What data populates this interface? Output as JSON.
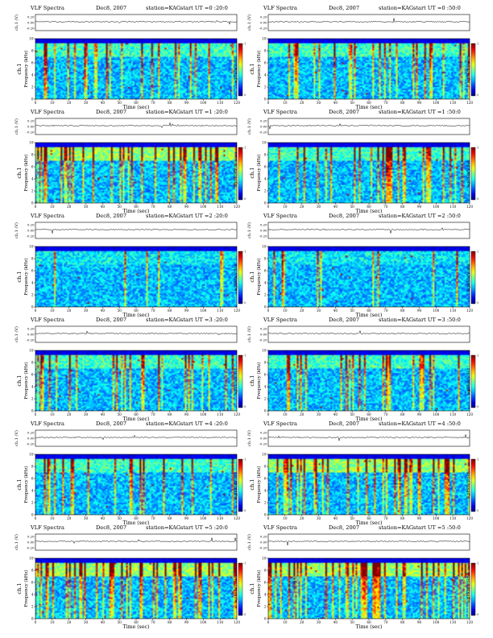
{
  "chart_data": [
    {
      "type": "heatmap",
      "title_prefix": "VLF Spectra",
      "date": "Dec8, 2007",
      "station": "station=KAG",
      "start_ut": "start UT =0 :20:0",
      "panel_label": "ch.1",
      "top_ylabel": "ch.1 (V)",
      "top_yticks": [
        "0.20",
        "0.00",
        "-0.20"
      ],
      "ylabel": "Frequency (kHz)",
      "xlabel": "Time (sec)",
      "xlim": [
        0,
        120
      ],
      "xticks": [
        0,
        10,
        20,
        30,
        40,
        50,
        60,
        70,
        80,
        90,
        100,
        110,
        120
      ],
      "ylim": [
        0,
        10
      ],
      "yticks": [
        0,
        2,
        4,
        6,
        8,
        10
      ],
      "colorbar_label": "log(PSD)(V²/Hz)",
      "colorbar_ticks": [
        "-1",
        "-5"
      ],
      "activity": "moderate",
      "band_top_khz": 9.2,
      "side": "left"
    },
    {
      "type": "heatmap",
      "title_prefix": "VLF Spectra",
      "date": "Dec8, 2007",
      "station": "station=KAG",
      "start_ut": "start UT =0 :50:0",
      "panel_label": "ch.1",
      "top_ylabel": "ch.1 (V)",
      "top_yticks": [
        "0.20",
        "0.00",
        "-0.20"
      ],
      "ylabel": "Frequency (kHz)",
      "xlabel": "Time (sec)",
      "xlim": [
        0,
        120
      ],
      "xticks": [
        0,
        10,
        20,
        30,
        40,
        50,
        60,
        70,
        80,
        90,
        100,
        110,
        120
      ],
      "ylim": [
        0,
        10
      ],
      "yticks": [
        0,
        2,
        4,
        6,
        8,
        10
      ],
      "colorbar_label": "log(PSD)(V²/Hz)",
      "colorbar_ticks": [
        "-1",
        "-5"
      ],
      "activity": "moderate",
      "band_top_khz": 9.2,
      "side": "right"
    },
    {
      "type": "heatmap",
      "title_prefix": "VLF Spectra",
      "date": "Dec8, 2007",
      "station": "station=KAG",
      "start_ut": "start UT =1 :20:0",
      "panel_label": "ch.1",
      "top_ylabel": "ch.1 (V)",
      "top_yticks": [
        "0.20",
        "0.00",
        "-0.20"
      ],
      "ylabel": "Frequency (kHz)",
      "xlabel": "Time (sec)",
      "xlim": [
        0,
        120
      ],
      "xticks": [
        0,
        10,
        20,
        30,
        40,
        50,
        60,
        70,
        80,
        90,
        100,
        110,
        120
      ],
      "ylim": [
        0,
        10
      ],
      "yticks": [
        0,
        2,
        4,
        6,
        8,
        10
      ],
      "colorbar_label": "log(PSD)(V²/Hz)",
      "colorbar_ticks": [
        "-1",
        "-5"
      ],
      "activity": "high",
      "band_top_khz": 9.2,
      "side": "left"
    },
    {
      "type": "heatmap",
      "title_prefix": "VLF Spectra",
      "date": "Dec8, 2007",
      "station": "station=KAG",
      "start_ut": "start UT =1 :50:0",
      "panel_label": "ch.1",
      "top_ylabel": "ch.1 (V)",
      "top_yticks": [
        "0.20",
        "0.00",
        "-0.20"
      ],
      "ylabel": "Frequency (kHz)",
      "xlabel": "Time (sec)",
      "xlim": [
        0,
        120
      ],
      "xticks": [
        0,
        10,
        20,
        30,
        40,
        50,
        60,
        70,
        80,
        90,
        100,
        110,
        120
      ],
      "ylim": [
        0,
        10
      ],
      "yticks": [
        0,
        2,
        4,
        6,
        8,
        10
      ],
      "colorbar_label": "log(PSD)(V²/Hz)",
      "colorbar_ticks": [
        "-1",
        "-5"
      ],
      "activity": "moderate",
      "band_top_khz": 9.2,
      "side": "right"
    },
    {
      "type": "heatmap",
      "title_prefix": "VLF Spectra",
      "date": "Dec8, 2007",
      "station": "station=KAG",
      "start_ut": "start UT =2 :20:0",
      "panel_label": "ch.1",
      "top_ylabel": "ch.1 (V)",
      "top_yticks": [
        "0.20",
        "0.00",
        "-0.20"
      ],
      "ylabel": "Frequency (kHz)",
      "xlabel": "Time (sec)",
      "xlim": [
        0,
        120
      ],
      "xticks": [
        0,
        10,
        20,
        30,
        40,
        50,
        60,
        70,
        80,
        90,
        100,
        110,
        120
      ],
      "ylim": [
        0,
        10
      ],
      "yticks": [
        0,
        2,
        4,
        6,
        8,
        10
      ],
      "colorbar_label": "log(PSD)(V²/Hz)",
      "colorbar_ticks": [
        "-1",
        "-5"
      ],
      "activity": "low",
      "band_top_khz": 9.2,
      "side": "left"
    },
    {
      "type": "heatmap",
      "title_prefix": "VLF Spectra",
      "date": "Dec8, 2007",
      "station": "station=KAG",
      "start_ut": "start UT =2 :50:0",
      "panel_label": "ch.1",
      "top_ylabel": "ch.1 (V)",
      "top_yticks": [
        "0.20",
        "0.00",
        "-0.20"
      ],
      "ylabel": "Frequency (kHz)",
      "xlabel": "Time (sec)",
      "xlim": [
        0,
        120
      ],
      "xticks": [
        0,
        10,
        20,
        30,
        40,
        50,
        60,
        70,
        80,
        90,
        100,
        110,
        120
      ],
      "ylim": [
        0,
        10
      ],
      "yticks": [
        0,
        2,
        4,
        6,
        8,
        10
      ],
      "colorbar_label": "log(PSD)(V²/Hz)",
      "colorbar_ticks": [
        "-1",
        "-5"
      ],
      "activity": "low",
      "band_top_khz": 9.2,
      "side": "right"
    },
    {
      "type": "heatmap",
      "title_prefix": "VLF Spectra",
      "date": "Dec8, 2007",
      "station": "station=KAG",
      "start_ut": "start UT =3 :20:0",
      "panel_label": "ch.1",
      "top_ylabel": "ch.1 (V)",
      "top_yticks": [
        "0.20",
        "0.00",
        "-0.20"
      ],
      "ylabel": "Frequency (kHz)",
      "xlabel": "Time (sec)",
      "xlim": [
        0,
        120
      ],
      "xticks": [
        0,
        10,
        20,
        30,
        40,
        50,
        60,
        70,
        80,
        90,
        100,
        110,
        120
      ],
      "ylim": [
        0,
        10
      ],
      "yticks": [
        0,
        2,
        4,
        6,
        8,
        10
      ],
      "colorbar_label": "log(PSD)(V²/Hz)",
      "colorbar_ticks": [
        "-1",
        "-5"
      ],
      "activity": "moderate",
      "band_top_khz": 9.2,
      "side": "left"
    },
    {
      "type": "heatmap",
      "title_prefix": "VLF Spectra",
      "date": "Dec8, 2007",
      "station": "station=KAG",
      "start_ut": "start UT =3 :50:0",
      "panel_label": "ch.1",
      "top_ylabel": "ch.1 (V)",
      "top_yticks": [
        "0.20",
        "0.00",
        "-0.20"
      ],
      "ylabel": "Frequency (kHz)",
      "xlabel": "Time (sec)",
      "xlim": [
        0,
        120
      ],
      "xticks": [
        0,
        10,
        20,
        30,
        40,
        50,
        60,
        70,
        80,
        90,
        100,
        110,
        120
      ],
      "ylim": [
        0,
        10
      ],
      "yticks": [
        0,
        2,
        4,
        6,
        8,
        10
      ],
      "colorbar_label": "log(PSD)(V²/Hz)",
      "colorbar_ticks": [
        "-1",
        "-5"
      ],
      "activity": "moderate",
      "band_top_khz": 9.2,
      "side": "right"
    },
    {
      "type": "heatmap",
      "title_prefix": "VLF Spectra",
      "date": "Dec8, 2007",
      "station": "station=KAG",
      "start_ut": "start UT =4 :20:0",
      "panel_label": "ch.1",
      "top_ylabel": "ch.1 (V)",
      "top_yticks": [
        "0.20",
        "0.00",
        "-0.20"
      ],
      "ylabel": "Frequency (kHz)",
      "xlabel": "Time (sec)",
      "xlim": [
        0,
        120
      ],
      "xticks": [
        0,
        10,
        20,
        30,
        40,
        50,
        60,
        70,
        80,
        90,
        100,
        110,
        120
      ],
      "ylim": [
        0,
        10
      ],
      "yticks": [
        0,
        2,
        4,
        6,
        8,
        10
      ],
      "colorbar_label": "log(PSD)(V²/Hz)",
      "colorbar_ticks": [
        "-1",
        "-5"
      ],
      "activity": "moderate",
      "band_top_khz": 9.2,
      "side": "left"
    },
    {
      "type": "heatmap",
      "title_prefix": "VLF Spectra",
      "date": "Dec8, 2007",
      "station": "station=KAG",
      "start_ut": "start UT =4 :50:0",
      "panel_label": "ch.1",
      "top_ylabel": "ch.1 (V)",
      "top_yticks": [
        "0.20",
        "0.00",
        "-0.20"
      ],
      "ylabel": "Frequency (kHz)",
      "xlabel": "Time (sec)",
      "xlim": [
        0,
        120
      ],
      "xticks": [
        0,
        10,
        20,
        30,
        40,
        50,
        60,
        70,
        80,
        90,
        100,
        110,
        120
      ],
      "ylim": [
        0,
        10
      ],
      "yticks": [
        0,
        2,
        4,
        6,
        8,
        10
      ],
      "colorbar_label": "log(PSD)(V²/Hz)",
      "colorbar_ticks": [
        "-1",
        "-5"
      ],
      "activity": "high",
      "band_top_khz": 9.2,
      "side": "right"
    },
    {
      "type": "heatmap",
      "title_prefix": "VLF Spectra",
      "date": "Dec8, 2007",
      "station": "station=KAG",
      "start_ut": "start UT =5 :20:0",
      "panel_label": "ch.1",
      "top_ylabel": "ch.1 (V)",
      "top_yticks": [
        "0.20",
        "0.00",
        "-0.20"
      ],
      "ylabel": "Frequency (kHz)",
      "xlabel": "Time (sec)",
      "xlim": [
        0,
        120
      ],
      "xticks": [
        0,
        10,
        20,
        30,
        40,
        50,
        60,
        70,
        80,
        90,
        100,
        110,
        120
      ],
      "ylim": [
        0,
        10
      ],
      "yticks": [
        0,
        2,
        4,
        6,
        8,
        10
      ],
      "colorbar_label": "log(PSD)(V²/Hz)",
      "colorbar_ticks": [
        "-1",
        "-5"
      ],
      "activity": "high",
      "band_top_khz": 9.2,
      "side": "left"
    },
    {
      "type": "heatmap",
      "title_prefix": "VLF Spectra",
      "date": "Dec8, 2007",
      "station": "station=KAG",
      "start_ut": "start UT =5 :50:0",
      "panel_label": "ch.1",
      "top_ylabel": "ch.1 (V)",
      "top_yticks": [
        "0.20",
        "0.00",
        "-0.20"
      ],
      "ylabel": "Frequency (kHz)",
      "xlabel": "Time (sec)",
      "xlim": [
        0,
        120
      ],
      "xticks": [
        0,
        10,
        20,
        30,
        40,
        50,
        60,
        70,
        80,
        90,
        100,
        110,
        120
      ],
      "ylim": [
        0,
        10
      ],
      "yticks": [
        0,
        2,
        4,
        6,
        8,
        10
      ],
      "colorbar_label": "log(PSD)(V²/Hz)",
      "colorbar_ticks": [
        "-1",
        "-5"
      ],
      "activity": "high",
      "band_top_khz": 9.2,
      "side": "right"
    }
  ]
}
